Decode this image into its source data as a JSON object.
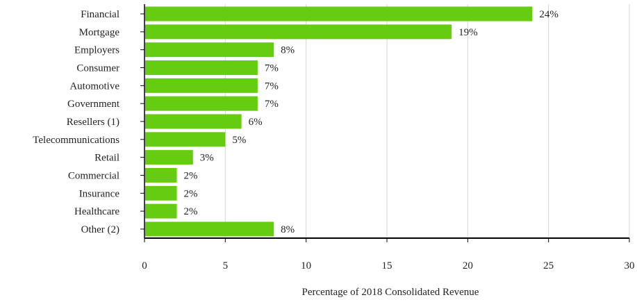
{
  "chart_data": {
    "type": "bar",
    "orientation": "horizontal",
    "categories": [
      "Financial",
      "Mortgage",
      "Employers",
      "Consumer",
      "Automotive",
      "Government",
      "Resellers (1)",
      "Telecommunications",
      "Retail",
      "Commercial",
      "Insurance",
      "Healthcare",
      "Other (2)"
    ],
    "values": [
      24,
      19,
      8,
      7,
      7,
      7,
      6,
      5,
      3,
      2,
      2,
      2,
      8
    ],
    "value_labels": [
      "24%",
      "19%",
      "8%",
      "7%",
      "7%",
      "7%",
      "6%",
      "5%",
      "3%",
      "2%",
      "2%",
      "2%",
      "8%"
    ],
    "title": "",
    "xlabel": "Percentage of 2018 Consolidated Revenue",
    "ylabel": "",
    "xlim": [
      0,
      30
    ],
    "xticks": [
      0,
      5,
      10,
      15,
      20,
      25,
      30
    ],
    "grid": "vertical",
    "legend": "none",
    "colors": {
      "bar": "#66cc11",
      "grid": "#d6d6d6",
      "axis": "#000000",
      "text": "#222222"
    }
  }
}
